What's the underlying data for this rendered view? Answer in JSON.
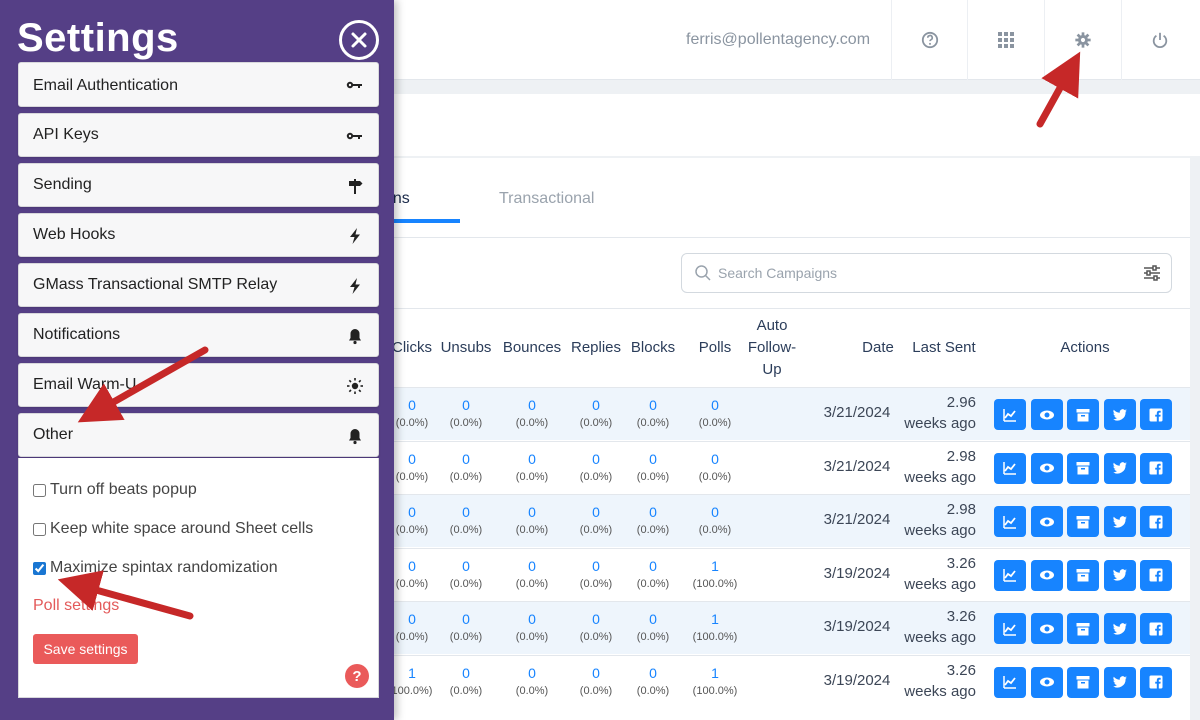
{
  "header": {
    "user_email": "ferris@pollentagency.com",
    "icons": [
      "help-icon",
      "apps-grid-icon",
      "gear-icon",
      "power-icon"
    ]
  },
  "tabs": [
    {
      "label": "gns",
      "active": true
    },
    {
      "label": "Transactional",
      "active": false
    }
  ],
  "search": {
    "placeholder": "Search Campaigns",
    "value": ""
  },
  "table": {
    "columns": [
      "Clicks",
      "Unsubs",
      "Bounces",
      "Replies",
      "Blocks",
      "Polls",
      "Auto\nFollow-\nUp",
      "Date",
      "Last Sent",
      "Actions"
    ],
    "rows": [
      {
        "clicks": "0",
        "clicks_pct": "(0.0%)",
        "unsubs": "0",
        "unsubs_pct": "(0.0%)",
        "bounces": "0",
        "bounces_pct": "(0.0%)",
        "replies": "0",
        "replies_pct": "(0.0%)",
        "blocks": "0",
        "blocks_pct": "(0.0%)",
        "polls": "0",
        "polls_pct": "(0.0%)",
        "date": "3/21/2024",
        "sent_1": "2.96",
        "sent_2": "weeks ago"
      },
      {
        "clicks": "0",
        "clicks_pct": "(0.0%)",
        "unsubs": "0",
        "unsubs_pct": "(0.0%)",
        "bounces": "0",
        "bounces_pct": "(0.0%)",
        "replies": "0",
        "replies_pct": "(0.0%)",
        "blocks": "0",
        "blocks_pct": "(0.0%)",
        "polls": "0",
        "polls_pct": "(0.0%)",
        "date": "3/21/2024",
        "sent_1": "2.98",
        "sent_2": "weeks ago"
      },
      {
        "clicks": "0",
        "clicks_pct": "(0.0%)",
        "unsubs": "0",
        "unsubs_pct": "(0.0%)",
        "bounces": "0",
        "bounces_pct": "(0.0%)",
        "replies": "0",
        "replies_pct": "(0.0%)",
        "blocks": "0",
        "blocks_pct": "(0.0%)",
        "polls": "0",
        "polls_pct": "(0.0%)",
        "date": "3/21/2024",
        "sent_1": "2.98",
        "sent_2": "weeks ago"
      },
      {
        "clicks": "0",
        "clicks_pct": "(0.0%)",
        "unsubs": "0",
        "unsubs_pct": "(0.0%)",
        "bounces": "0",
        "bounces_pct": "(0.0%)",
        "replies": "0",
        "replies_pct": "(0.0%)",
        "blocks": "0",
        "blocks_pct": "(0.0%)",
        "polls": "1",
        "polls_pct": "(100.0%)",
        "date": "3/19/2024",
        "sent_1": "3.26",
        "sent_2": "weeks ago"
      },
      {
        "clicks": "0",
        "clicks_pct": "(0.0%)",
        "unsubs": "0",
        "unsubs_pct": "(0.0%)",
        "bounces": "0",
        "bounces_pct": "(0.0%)",
        "replies": "0",
        "replies_pct": "(0.0%)",
        "blocks": "0",
        "blocks_pct": "(0.0%)",
        "polls": "1",
        "polls_pct": "(100.0%)",
        "date": "3/19/2024",
        "sent_1": "3.26",
        "sent_2": "weeks ago"
      },
      {
        "clicks": "1",
        "clicks_pct": "100.0%)",
        "unsubs": "0",
        "unsubs_pct": "(0.0%)",
        "bounces": "0",
        "bounces_pct": "(0.0%)",
        "replies": "0",
        "replies_pct": "(0.0%)",
        "blocks": "0",
        "blocks_pct": "(0.0%)",
        "polls": "1",
        "polls_pct": "(100.0%)",
        "date": "3/19/2024",
        "sent_1": "3.26",
        "sent_2": "weeks ago"
      }
    ],
    "action_icons": [
      "chart-icon",
      "eye-icon",
      "archive-icon",
      "twitter-icon",
      "facebook-icon"
    ]
  },
  "settings": {
    "title": "Settings",
    "sections": [
      {
        "label": "Email Authentication",
        "icon": "key-icon"
      },
      {
        "label": "API Keys",
        "icon": "key-icon"
      },
      {
        "label": "Sending",
        "icon": "signpost-icon"
      },
      {
        "label": "Web Hooks",
        "icon": "bolt-icon"
      },
      {
        "label": "GMass Transactional SMTP Relay",
        "icon": "bolt-icon"
      },
      {
        "label": "Notifications",
        "icon": "bell-icon"
      },
      {
        "label": "Email Warm-U",
        "icon": "sun-icon"
      },
      {
        "label": "Other",
        "icon": "bell-icon"
      }
    ],
    "other": {
      "options": [
        {
          "label": "Turn off beats popup",
          "checked": false
        },
        {
          "label": "Keep white space around Sheet cells",
          "checked": false
        },
        {
          "label": "Maximize spintax randomization",
          "checked": true
        }
      ],
      "poll_link": "Poll settings",
      "save_label": "Save settings",
      "help_label": "?"
    }
  },
  "colors": {
    "panel": "#553f86",
    "accent": "#1784ff",
    "danger": "#ea5a5a",
    "arrow": "#c62828"
  }
}
